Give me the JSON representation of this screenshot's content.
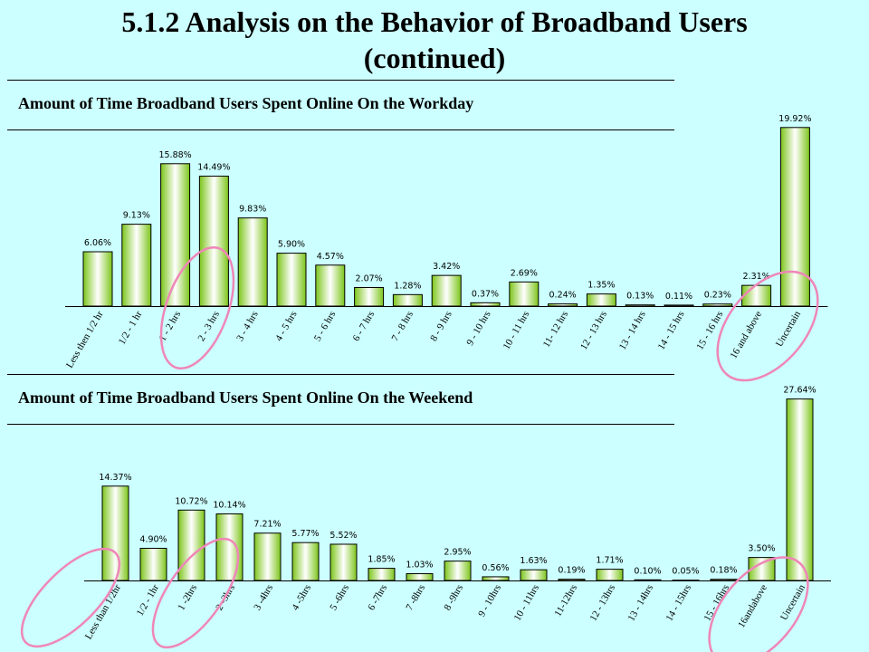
{
  "slide": {
    "title_line1": "5.1.2 Analysis on the Behavior of Broadband Users",
    "title_line2": "(continued)"
  },
  "colors": {
    "background": "#ccffff",
    "bar_dark": "#7cc51a",
    "bar_light": "#ffffff",
    "highlight": "#ef86b8"
  },
  "chart_data": [
    {
      "type": "bar",
      "title": "Amount of Time Broadband Users Spent Online  On the Workday",
      "categories": [
        "Less then 1/2 hr",
        "1/2 - 1 hr",
        "1 - 2 hrs",
        "2 - 3 hrs",
        "3 - 4 hrs",
        "4 - 5 hrs",
        "5 - 6 hrs",
        "6 - 7 hrs",
        "7 - 8 hrs",
        "8 - 9 hrs",
        "9 - 10 hrs",
        "10 - 11 hrs",
        "11- 12 hrs",
        "12 - 13 hrs",
        "13 - 14 hrs",
        "14 - 15 hrs",
        "15 - 16 hrs",
        "16 and above",
        "Uncertain"
      ],
      "values": [
        6.06,
        9.13,
        15.88,
        14.49,
        9.83,
        5.9,
        4.57,
        2.07,
        1.28,
        3.42,
        0.37,
        2.69,
        0.24,
        1.35,
        0.13,
        0.11,
        0.23,
        2.31,
        19.92
      ],
      "value_labels": [
        "6.06%",
        "9.13%",
        "15.88%",
        "14.49%",
        "9.83%",
        "5.90%",
        "4.57%",
        "2.07%",
        "1.28%",
        "3.42%",
        "0.37%",
        "2.69%",
        "0.24%",
        "1.35%",
        "0.13%",
        "0.11%",
        "0.23%",
        "2.31%",
        "19.92%"
      ],
      "highlighted_categories": [
        "1 - 2 hrs",
        "2 - 3 hrs",
        "Uncertain"
      ],
      "ylim": [
        0,
        20
      ]
    },
    {
      "type": "bar",
      "title": "Amount of Time Broadband Users Spent Online  On the Weekend",
      "categories": [
        "Less than 1/2hr",
        "1/2 - 1hr",
        "1 -2hrs",
        "2 -3hrs",
        "3 -4hrs",
        "4 -5hrs",
        "5 -6hrs",
        "6 -7hrs",
        "7 -8hrs",
        "8 -9hrs",
        "9 - 10hrs",
        "10 - 11hrs",
        "11-12hrs",
        "12 - 13hrs",
        "13 - 14hrs",
        "14 - 15hrs",
        "15 - 16hrs",
        "16andabove",
        "Uncertain"
      ],
      "values": [
        14.37,
        4.9,
        10.72,
        10.14,
        7.21,
        5.77,
        5.52,
        1.85,
        1.03,
        2.95,
        0.56,
        1.63,
        0.19,
        1.71,
        0.1,
        0.05,
        0.18,
        3.5,
        27.64
      ],
      "value_labels": [
        "14.37%",
        "4.90%",
        "10.72%",
        "10.14%",
        "7.21%",
        "5.77%",
        "5.52%",
        "1.85%",
        "1.03%",
        "2.95%",
        "0.56%",
        "1.63%",
        "0.19%",
        "1.71%",
        "0.10%",
        "0.05%",
        "0.18%",
        "3.50%",
        "27.64%"
      ],
      "highlighted_categories": [
        "Less than 1/2hr",
        "1 -2hrs",
        "Uncertain"
      ],
      "ylim": [
        0,
        28
      ]
    }
  ]
}
